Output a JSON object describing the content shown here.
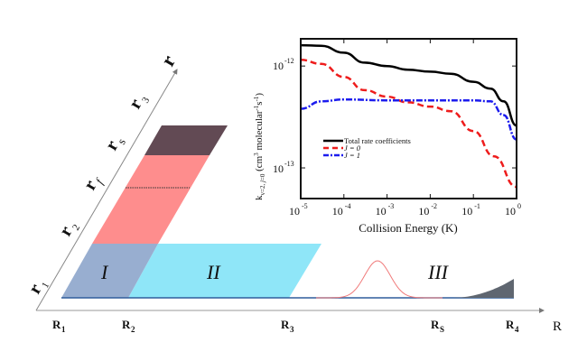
{
  "schematic": {
    "r_axis_label": "r",
    "r_ticks": [
      {
        "main": "r",
        "sub": "1"
      },
      {
        "main": "r",
        "sub": "2"
      },
      {
        "main": "r",
        "sub": "f"
      },
      {
        "main": "r",
        "sub": "s"
      },
      {
        "main": "r",
        "sub": "3"
      }
    ],
    "R_axis_label": "R",
    "R_ticks": [
      {
        "main": "R",
        "sub": "1"
      },
      {
        "main": "R",
        "sub": "2"
      },
      {
        "main": "R",
        "sub": "3"
      },
      {
        "main": "R",
        "sub": "S"
      },
      {
        "main": "R",
        "sub": "4"
      }
    ],
    "regions": [
      "I",
      "II",
      "III"
    ],
    "colors": {
      "region_I": "#98aed0",
      "region_II": "#8fe6f8",
      "pink": "#fe8d8d",
      "dark_top": "#624a54",
      "dark_tail": "#5f6670",
      "gaussian": "#f07a7a",
      "baseline": "#2f5d9c"
    }
  },
  "chart_data": {
    "type": "line",
    "title": "",
    "xlabel": "Collision Energy (K)",
    "ylabel": "k_{v=2,j=0} (cm^3 molecular^-1 s^-1)",
    "xscale": "log",
    "yscale": "log",
    "xlim": [
      1e-05,
      1
    ],
    "ylim": [
      5e-14,
      1.85e-12
    ],
    "x_tick_labels": [
      {
        "base": "10",
        "exp": "-5"
      },
      {
        "base": "10",
        "exp": "-4"
      },
      {
        "base": "10",
        "exp": "-3"
      },
      {
        "base": "10",
        "exp": "-2"
      },
      {
        "base": "10",
        "exp": "-1"
      },
      {
        "base": "10",
        "exp": "0"
      }
    ],
    "y_tick_labels": [
      {
        "base": "10",
        "exp": "-12"
      },
      {
        "base": "10",
        "exp": "-13"
      }
    ],
    "legend_position": "center-left",
    "series": [
      {
        "name": "Total rate coefficients",
        "color": "#000000",
        "style": "solid",
        "x": [
          1e-05,
          3e-05,
          0.0001,
          0.0003,
          0.001,
          0.003,
          0.01,
          0.03,
          0.1,
          0.25,
          0.5,
          1
        ],
        "y": [
          1.6e-12,
          1.58e-12,
          1.35e-12,
          1.08e-12,
          1e-12,
          9.2e-13,
          8.8e-13,
          8.4e-13,
          7e-13,
          6e-13,
          4.5e-13,
          2.6e-13
        ]
      },
      {
        "name": "J = 0",
        "color": "#ee1c1c",
        "style": "dashed",
        "x": [
          1e-05,
          3e-05,
          0.0001,
          0.0003,
          0.001,
          0.003,
          0.01,
          0.03,
          0.1,
          0.3,
          1
        ],
        "y": [
          1.15e-12,
          1.05e-12,
          7.8e-13,
          5.8e-13,
          5e-13,
          4.4e-13,
          4e-13,
          3.6e-13,
          2.3e-13,
          1.3e-13,
          6.5e-14
        ]
      },
      {
        "name": "J = 1",
        "color": "#1c1cee",
        "style": "dashdot",
        "x": [
          1e-05,
          3e-05,
          0.0001,
          0.001,
          0.01,
          0.1,
          0.25,
          0.5,
          1
        ],
        "y": [
          3.8e-13,
          4.5e-13,
          4.7e-13,
          4.6e-13,
          4.6e-13,
          4.6e-13,
          4.5e-13,
          3.3e-13,
          1.9e-13
        ]
      }
    ]
  }
}
